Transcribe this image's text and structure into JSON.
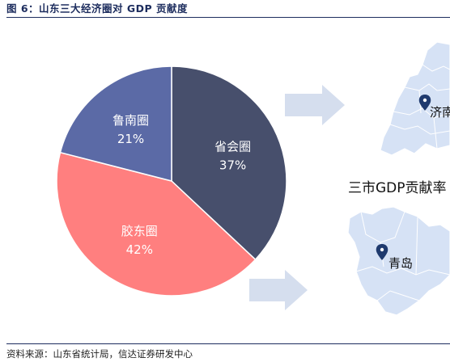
{
  "figure": {
    "title": "图 6：山东三大经济圈对 GDP 贡献度",
    "source": "资料来源：山东省统计局，信达证券研发中心"
  },
  "chart_data": {
    "type": "pie",
    "slices": [
      {
        "name": "省会圈",
        "value": 37,
        "label": "37%",
        "color": "#474f6c"
      },
      {
        "name": "胶东圈",
        "value": 42,
        "label": "42%",
        "color": "#ff7f7f"
      },
      {
        "name": "鲁南圈",
        "value": 21,
        "label": "21%",
        "color": "#5b6aa6"
      }
    ],
    "start": "12 o'clock",
    "direction": "clockwise"
  },
  "maps": {
    "headline": "三市GDP贡献率",
    "cities": [
      {
        "name": "济南",
        "map": "top"
      },
      {
        "name": "青岛",
        "map": "bottom"
      }
    ]
  }
}
